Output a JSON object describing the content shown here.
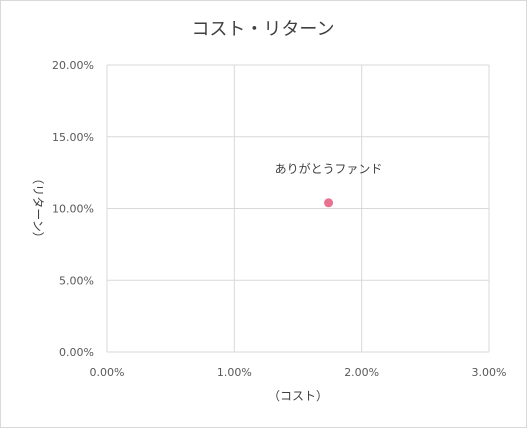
{
  "chart_data": {
    "type": "scatter",
    "title": "コスト・リターン",
    "xlabel": "（コスト）",
    "ylabel": "（リターン）",
    "xlim": [
      0,
      0.03
    ],
    "ylim": [
      0,
      0.2
    ],
    "x_ticks": [
      0,
      0.01,
      0.02,
      0.03
    ],
    "y_ticks": [
      0,
      0.05,
      0.1,
      0.15,
      0.2
    ],
    "x_tick_labels": [
      "0.00%",
      "1.00%",
      "2.00%",
      "3.00%"
    ],
    "y_tick_labels": [
      "0.00%",
      "5.00%",
      "10.00%",
      "15.00%",
      "20.00%"
    ],
    "grid": true,
    "points": [
      {
        "label": "ありがとうファンド",
        "x": 0.0174,
        "y": 0.104,
        "color": "#e8728f"
      }
    ]
  }
}
